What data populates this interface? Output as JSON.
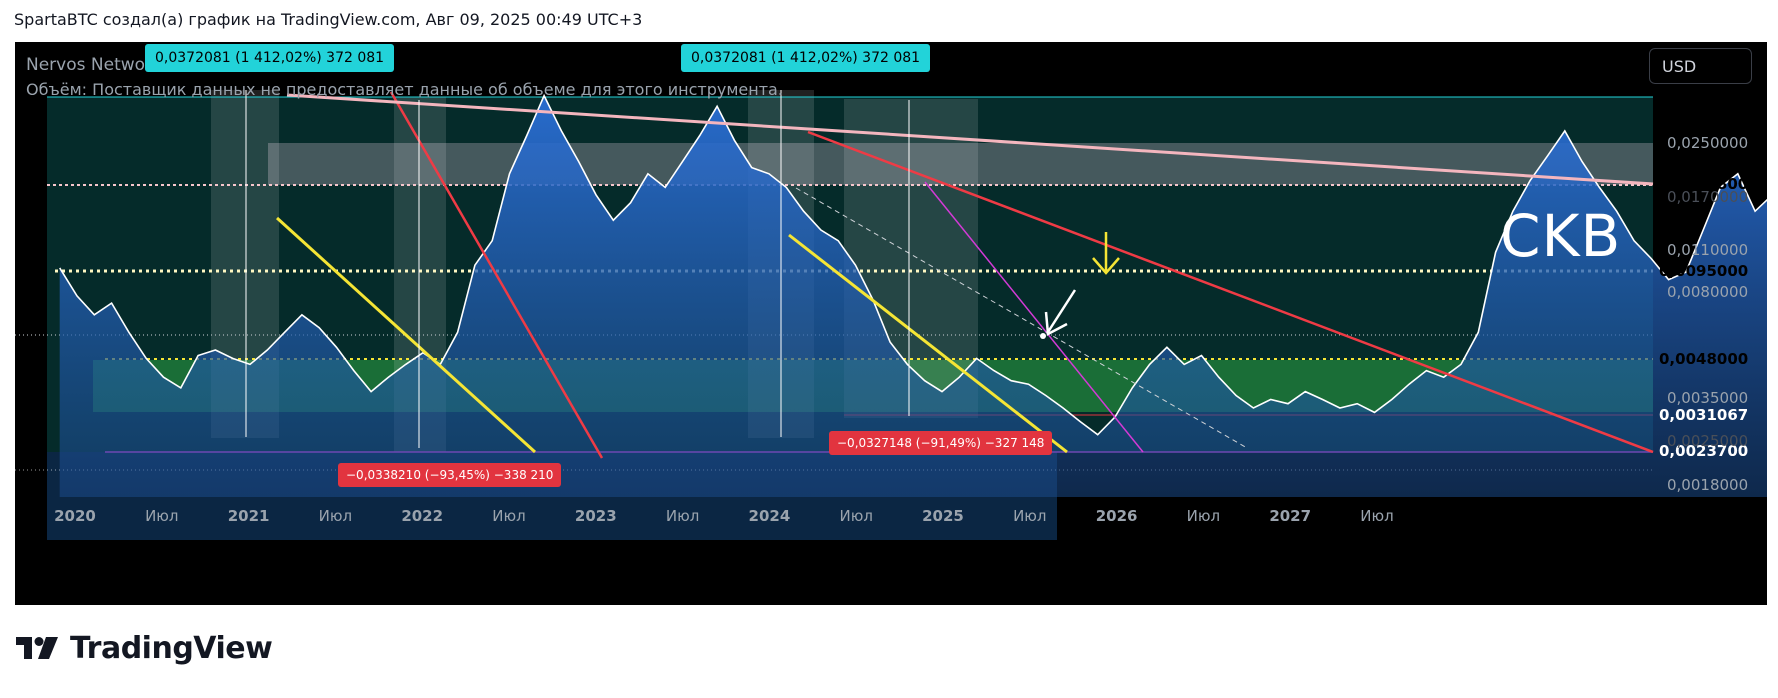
{
  "caption": "SpartaBTC создал(а) график на TradingView.com, Авг 09, 2025 00:49 UTC+3",
  "symbol": "Nervos Network",
  "volume_note": "Объём: Поставщик данных не предоставляет данные об объеме для этого инструмента.",
  "currency": "USD",
  "annotation_text": "CKB",
  "brand": "TradingView",
  "measure_up_1": "0,0372081 (1 412,02%) 372 081",
  "measure_up_2": "0,0372081 (1 412,02%) 372 081",
  "measure_down_1": "−0,0338210 (−93,45%) −338 210",
  "measure_down_2": "−0,0327148 (−91,49%) −327 148",
  "colors": {
    "background": "#000000",
    "area_fill": "#2a6fd6",
    "green_zone": "#1f7a3a",
    "yellow_trend": "#f5e535",
    "red_trend": "#ef3b45",
    "pink_trend": "#f4b6be",
    "magenta_line": "#d33ad6",
    "cyan_tag": "#22d3d9"
  },
  "chart_data": {
    "type": "area",
    "title": "Nervos Network",
    "scale": "log",
    "x_ticks": [
      "2020",
      "Июл",
      "2021",
      "Июл",
      "2022",
      "Июл",
      "2023",
      "Июл",
      "2024",
      "Июл",
      "2025",
      "Июл",
      "2026",
      "Июл",
      "2027",
      "Июл"
    ],
    "y_ticks": [
      "0,0250000",
      "0,0170000",
      "0,0110000",
      "0,0080000",
      "0,0035000",
      "0,0025000",
      "0,0018000"
    ],
    "price_levels": [
      {
        "value": "0,0361500",
        "color": "#22d3d9"
      },
      {
        "value": "0,0186800",
        "color": "#f7c6cc"
      },
      {
        "value": "0,0095000",
        "color": "#fff8c2"
      },
      {
        "value": "0,0048000",
        "color": "#f5e535"
      },
      {
        "value": "0,0031067",
        "color": "#e2343f"
      },
      {
        "value": "0,0023700",
        "color": "#e53ee0"
      }
    ],
    "series": [
      {
        "values": [
          [
            2019.95,
            0.0088
          ],
          [
            2020.0,
            0.007
          ],
          [
            2020.05,
            0.006
          ],
          [
            2020.1,
            0.0066
          ],
          [
            2020.15,
            0.0052
          ],
          [
            2020.2,
            0.0042
          ],
          [
            2020.25,
            0.0036
          ],
          [
            2020.3,
            0.0033
          ],
          [
            2020.35,
            0.0043
          ],
          [
            2020.4,
            0.0045
          ],
          [
            2020.45,
            0.0042
          ],
          [
            2020.5,
            0.004
          ],
          [
            2020.55,
            0.0045
          ],
          [
            2020.6,
            0.0052
          ],
          [
            2020.65,
            0.006
          ],
          [
            2020.7,
            0.0054
          ],
          [
            2020.75,
            0.0046
          ],
          [
            2020.8,
            0.0038
          ],
          [
            2020.85,
            0.0032
          ],
          [
            2020.9,
            0.0036
          ],
          [
            2020.95,
            0.004
          ],
          [
            2021.0,
            0.0044
          ],
          [
            2021.05,
            0.004
          ],
          [
            2021.1,
            0.0052
          ],
          [
            2021.15,
            0.009
          ],
          [
            2021.2,
            0.011
          ],
          [
            2021.25,
            0.019
          ],
          [
            2021.3,
            0.026
          ],
          [
            2021.35,
            0.036
          ],
          [
            2021.4,
            0.027
          ],
          [
            2021.45,
            0.021
          ],
          [
            2021.5,
            0.016
          ],
          [
            2021.55,
            0.013
          ],
          [
            2021.6,
            0.015
          ],
          [
            2021.65,
            0.019
          ],
          [
            2021.7,
            0.017
          ],
          [
            2021.75,
            0.021
          ],
          [
            2021.8,
            0.026
          ],
          [
            2021.85,
            0.033
          ],
          [
            2021.9,
            0.025
          ],
          [
            2021.95,
            0.02
          ],
          [
            2022.0,
            0.019
          ],
          [
            2022.05,
            0.017
          ],
          [
            2022.1,
            0.014
          ],
          [
            2022.15,
            0.012
          ],
          [
            2022.2,
            0.011
          ],
          [
            2022.25,
            0.009
          ],
          [
            2022.3,
            0.0068
          ],
          [
            2022.35,
            0.0048
          ],
          [
            2022.4,
            0.004
          ],
          [
            2022.45,
            0.0035
          ],
          [
            2022.5,
            0.0032
          ],
          [
            2022.55,
            0.0036
          ],
          [
            2022.6,
            0.0042
          ],
          [
            2022.65,
            0.0038
          ],
          [
            2022.7,
            0.0035
          ],
          [
            2022.75,
            0.0034
          ],
          [
            2022.8,
            0.0031
          ],
          [
            2022.85,
            0.0028
          ],
          [
            2022.9,
            0.0025
          ],
          [
            2022.95,
            0.00225
          ],
          [
            2023.0,
            0.0026
          ],
          [
            2023.05,
            0.0033
          ],
          [
            2023.1,
            0.004
          ],
          [
            2023.15,
            0.0046
          ],
          [
            2023.2,
            0.004
          ],
          [
            2023.25,
            0.0043
          ],
          [
            2023.3,
            0.0036
          ],
          [
            2023.35,
            0.0031
          ],
          [
            2023.4,
            0.0028
          ],
          [
            2023.45,
            0.003
          ],
          [
            2023.5,
            0.0029
          ],
          [
            2023.55,
            0.0032
          ],
          [
            2023.6,
            0.003
          ],
          [
            2023.65,
            0.0028
          ],
          [
            2023.7,
            0.0029
          ],
          [
            2023.75,
            0.0027
          ],
          [
            2023.8,
            0.003
          ],
          [
            2023.85,
            0.0034
          ],
          [
            2023.9,
            0.0038
          ],
          [
            2023.95,
            0.0036
          ],
          [
            2024.0,
            0.004
          ],
          [
            2024.05,
            0.0052
          ],
          [
            2024.1,
            0.01
          ],
          [
            2024.15,
            0.014
          ],
          [
            2024.2,
            0.018
          ],
          [
            2024.25,
            0.022
          ],
          [
            2024.3,
            0.027
          ],
          [
            2024.35,
            0.021
          ],
          [
            2024.4,
            0.017
          ],
          [
            2024.45,
            0.014
          ],
          [
            2024.5,
            0.011
          ],
          [
            2024.55,
            0.0095
          ],
          [
            2024.6,
            0.008
          ],
          [
            2024.65,
            0.0085
          ],
          [
            2024.7,
            0.012
          ],
          [
            2024.75,
            0.017
          ],
          [
            2024.8,
            0.019
          ],
          [
            2024.85,
            0.014
          ],
          [
            2024.9,
            0.016
          ],
          [
            2024.95,
            0.013
          ],
          [
            2025.0,
            0.011
          ],
          [
            2025.05,
            0.009
          ],
          [
            2025.1,
            0.0072
          ],
          [
            2025.15,
            0.0055
          ],
          [
            2025.2,
            0.0045
          ],
          [
            2025.25,
            0.004
          ],
          [
            2025.3,
            0.0048
          ],
          [
            2025.35,
            0.0058
          ],
          [
            2025.4,
            0.0046
          ],
          [
            2025.45,
            0.0038
          ],
          [
            2025.5,
            0.0033
          ],
          [
            2025.55,
            0.004
          ],
          [
            2025.6,
            0.0058
          ],
          [
            2025.62,
            0.0056
          ]
        ]
      }
    ]
  }
}
